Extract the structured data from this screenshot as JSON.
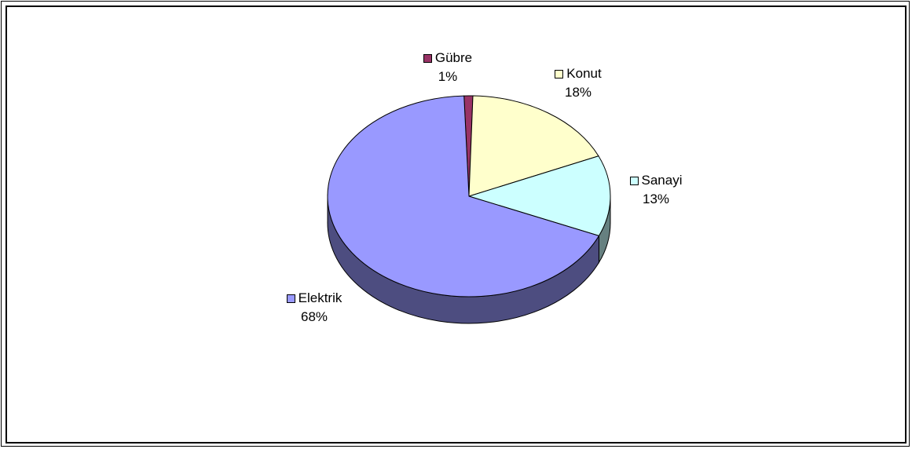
{
  "chart_data": {
    "type": "pie",
    "three_d": true,
    "slices": [
      {
        "label": "Gübre",
        "value": 1,
        "pct_label": "1%",
        "color": "#993366",
        "side_color": "#4d1a33"
      },
      {
        "label": "Konut",
        "value": 18,
        "pct_label": "18%",
        "color": "#ffffcc",
        "side_color": "#808066"
      },
      {
        "label": "Sanayi",
        "value": 13,
        "pct_label": "13%",
        "color": "#ccffff",
        "side_color": "#668080"
      },
      {
        "label": "Elektrik",
        "value": 68,
        "pct_label": "68%",
        "color": "#9999ff",
        "side_color": "#4d4d80"
      }
    ],
    "legend": "none",
    "data_labels": "category-and-percent"
  }
}
